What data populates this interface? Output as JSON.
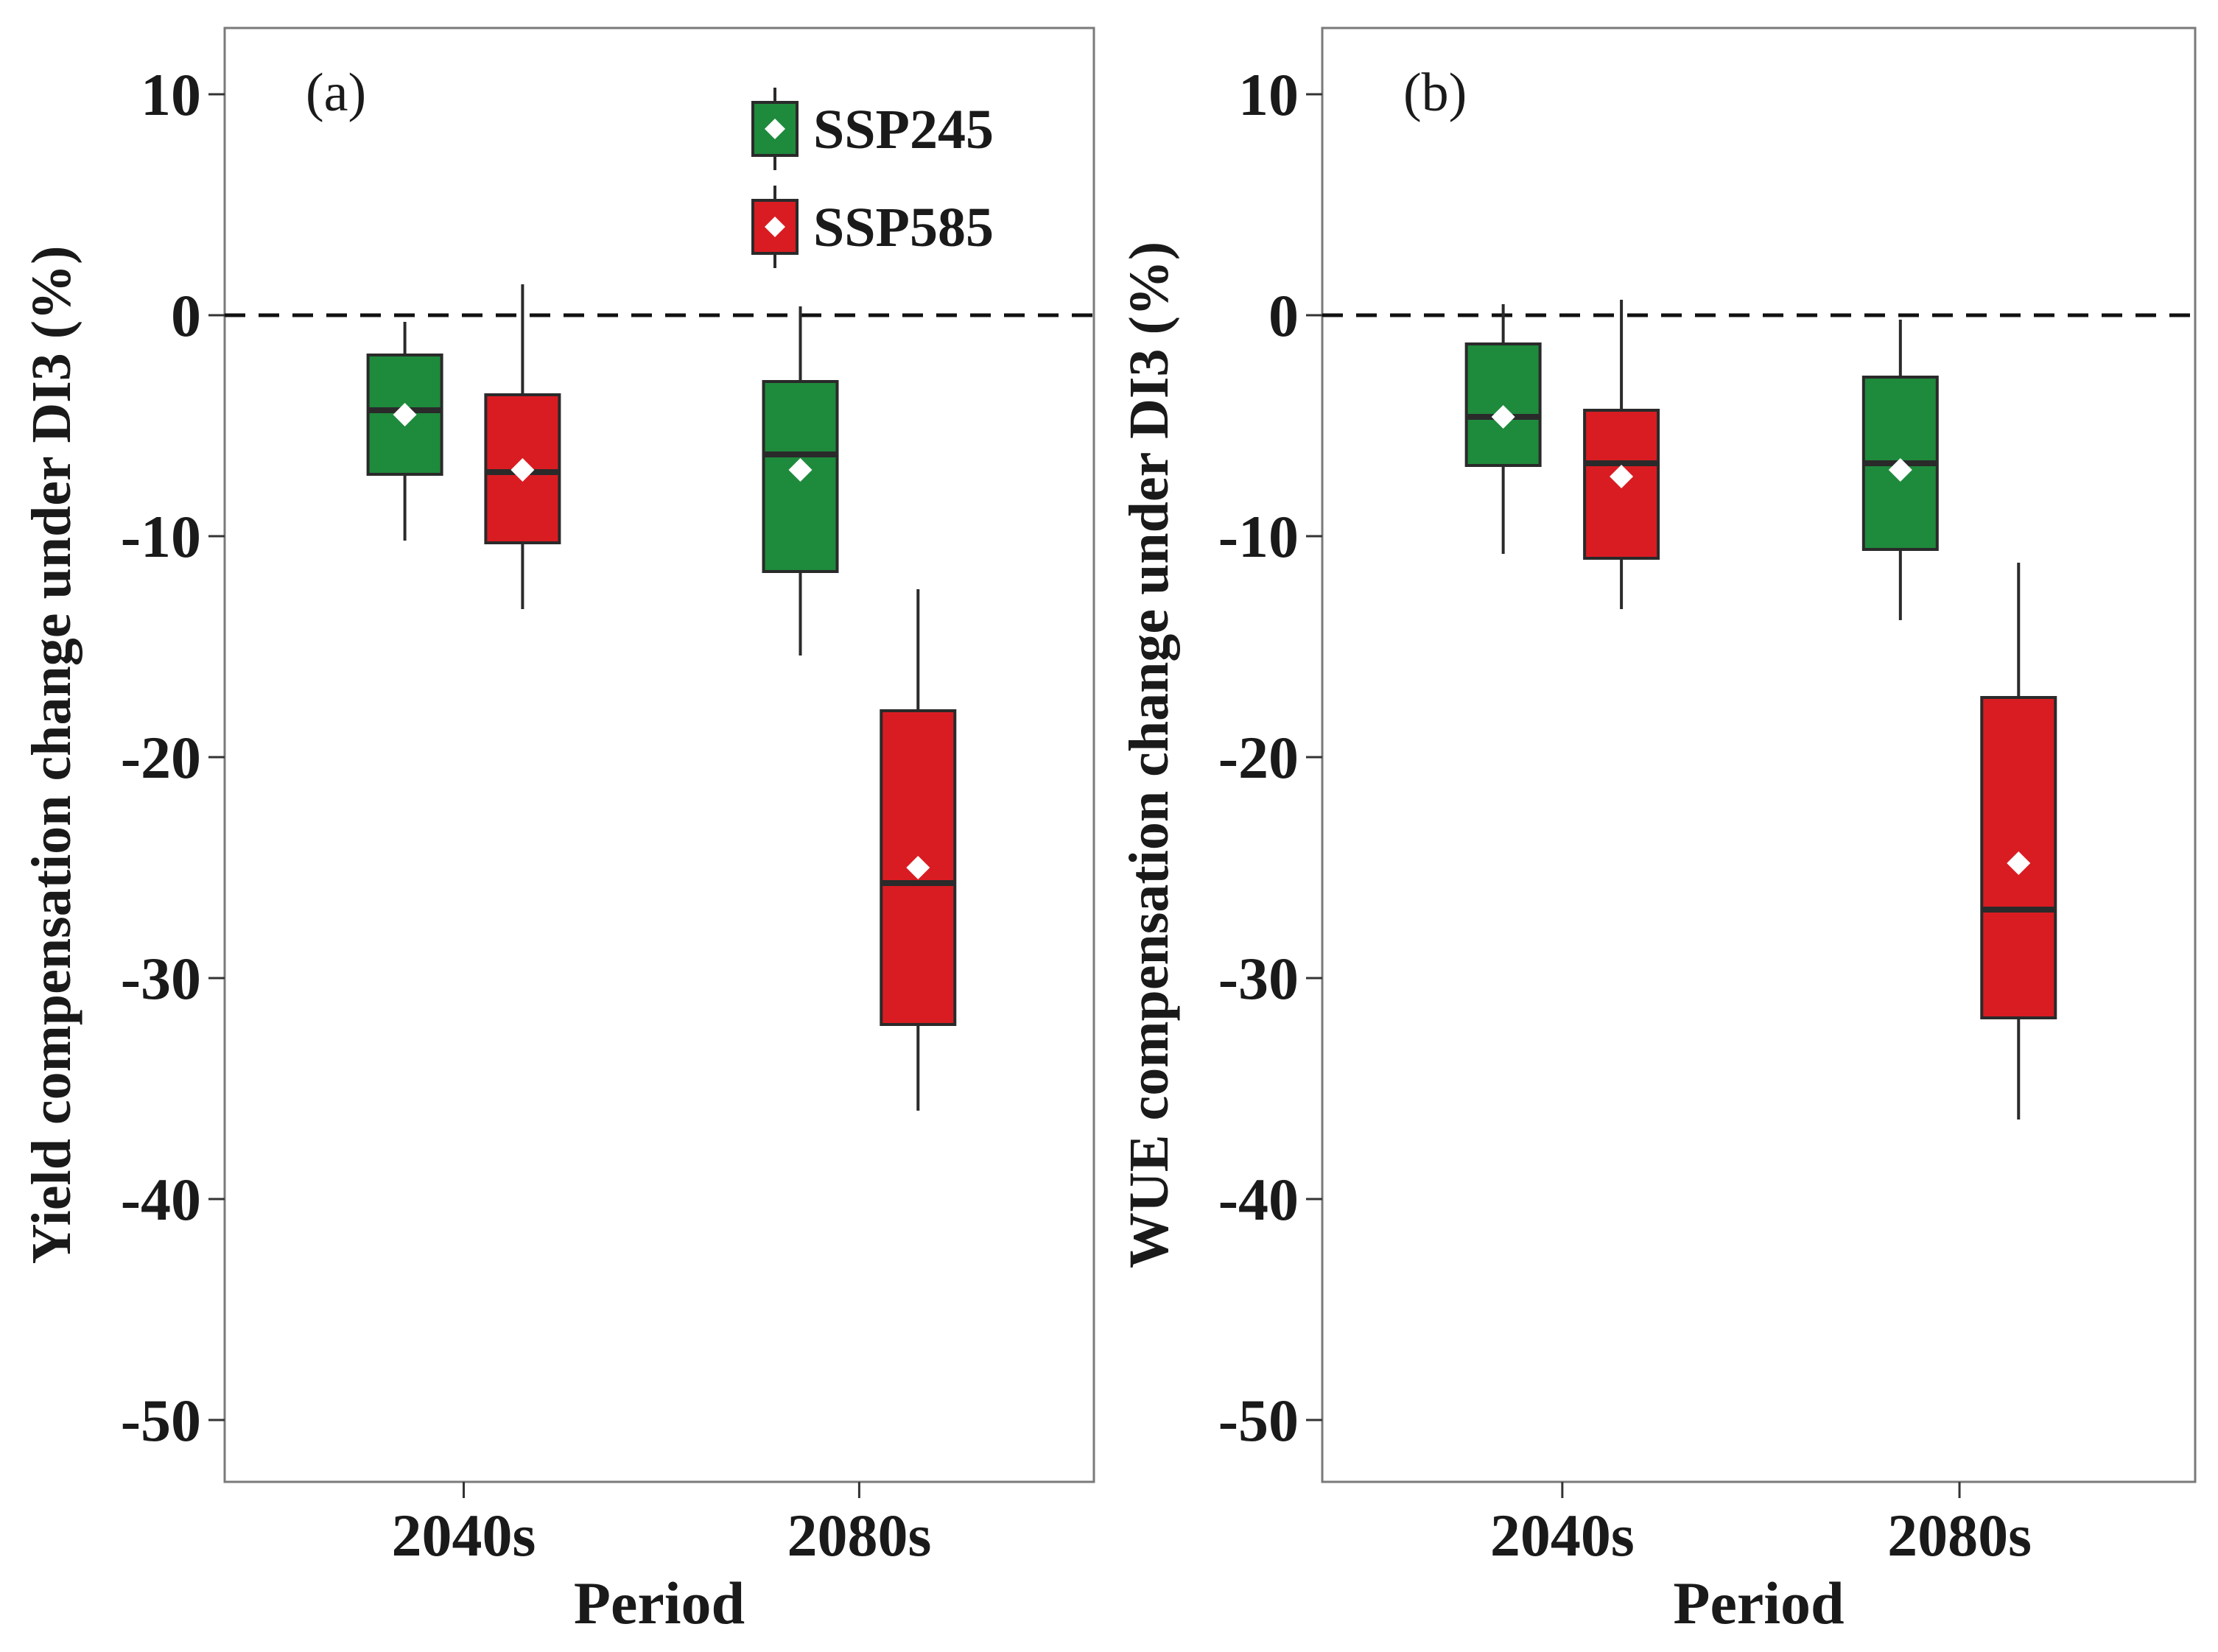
{
  "colors": {
    "SSP245": "#1e8a3c",
    "SSP585": "#d91c22",
    "mean_marker": "#ffffff",
    "outline": "#2a2a2a"
  },
  "legend": {
    "items": [
      {
        "name": "SSP245"
      },
      {
        "name": "SSP585"
      }
    ],
    "position": "top-right of panel (a)"
  },
  "chart_data": [
    {
      "type": "box",
      "panel_label": "(a)",
      "ylabel": "Yield compensation change under DI3 (%)",
      "xlabel": "Period",
      "categories": [
        "2040s",
        "2080s"
      ],
      "ylim": [
        -52,
        13
      ],
      "yticks": [
        10,
        0,
        -10,
        -20,
        -30,
        -40,
        -50
      ],
      "reference_line": 0,
      "series": [
        {
          "name": "SSP245",
          "boxes": [
            {
              "category": "2040s",
              "min": -10.2,
              "q1": -7.2,
              "median": -4.3,
              "q3": -1.8,
              "max": -0.3,
              "mean": -4.5
            },
            {
              "category": "2080s",
              "min": -15.4,
              "q1": -11.6,
              "median": -6.3,
              "q3": -3.0,
              "max": 0.4,
              "mean": -7.0
            }
          ]
        },
        {
          "name": "SSP585",
          "boxes": [
            {
              "category": "2040s",
              "min": -13.3,
              "q1": -10.3,
              "median": -7.1,
              "q3": -3.6,
              "max": 1.4,
              "mean": -7.0
            },
            {
              "category": "2080s",
              "min": -36.0,
              "q1": -32.1,
              "median": -25.7,
              "q3": -17.9,
              "max": -12.4,
              "mean": -25.0
            }
          ]
        }
      ]
    },
    {
      "type": "box",
      "panel_label": "(b)",
      "ylabel": "WUE compensation change under DI3 (%)",
      "xlabel": "Period",
      "categories": [
        "2040s",
        "2080s"
      ],
      "ylim": [
        -52,
        13
      ],
      "yticks": [
        10,
        0,
        -10,
        -20,
        -30,
        -40,
        -50
      ],
      "reference_line": 0,
      "series": [
        {
          "name": "SSP245",
          "boxes": [
            {
              "category": "2040s",
              "min": -10.8,
              "q1": -6.8,
              "median": -4.6,
              "q3": -1.3,
              "max": 0.5,
              "mean": -4.6
            },
            {
              "category": "2080s",
              "min": -13.8,
              "q1": -10.6,
              "median": -6.7,
              "q3": -2.8,
              "max": -0.2,
              "mean": -7.0
            }
          ]
        },
        {
          "name": "SSP585",
          "boxes": [
            {
              "category": "2040s",
              "min": -13.3,
              "q1": -11.0,
              "median": -6.7,
              "q3": -4.3,
              "max": 0.7,
              "mean": -7.3
            },
            {
              "category": "2080s",
              "min": -36.4,
              "q1": -31.8,
              "median": -26.9,
              "q3": -17.3,
              "max": -11.2,
              "mean": -24.8
            }
          ]
        }
      ]
    }
  ]
}
